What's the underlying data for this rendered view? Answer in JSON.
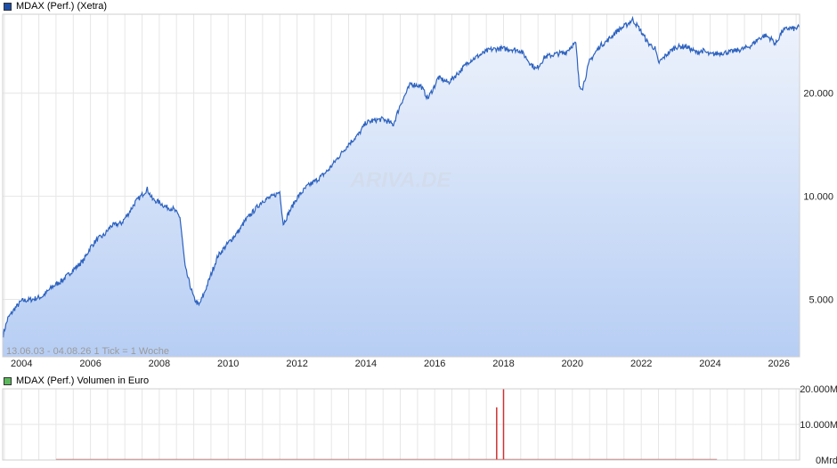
{
  "chart_data": [
    {
      "type": "area",
      "legend": "MDAX (Perf.) (Xetra)",
      "legend_color": "#1d4fa8",
      "line_color": "#2d62bf",
      "fill_top": "#eef3fc",
      "fill_bottom": "#b7cef4",
      "info": "13.06.03 - 04.08.26   1 Tick = 1 Woche",
      "watermark": "ARIVA.DE",
      "y_scale": "log",
      "ylim": [
        3400,
        34000
      ],
      "y_ticks": [
        5000,
        10000,
        20000
      ],
      "y_tick_labels": [
        "5.000",
        "10.000",
        "20.000"
      ],
      "x_range": [
        2003.45,
        2026.6
      ],
      "x_ticks": [
        2004,
        2006,
        2008,
        2010,
        2012,
        2014,
        2016,
        2018,
        2020,
        2022,
        2024,
        2026
      ],
      "x_tick_labels": [
        "2004",
        "2006",
        "2008",
        "2010",
        "2012",
        "2014",
        "2016",
        "2018",
        "2020",
        "2022",
        "2024",
        "2026"
      ],
      "grid": true,
      "x": [
        2003.45,
        2003.6,
        2003.8,
        2004.0,
        2004.3,
        2004.6,
        2004.9,
        2005.2,
        2005.5,
        2005.8,
        2006.0,
        2006.2,
        2006.4,
        2006.6,
        2006.9,
        2007.1,
        2007.3,
        2007.5,
        2007.65,
        2007.8,
        2008.0,
        2008.2,
        2008.4,
        2008.6,
        2008.75,
        2008.85,
        2009.0,
        2009.15,
        2009.3,
        2009.5,
        2009.7,
        2010.0,
        2010.3,
        2010.5,
        2010.8,
        2011.0,
        2011.3,
        2011.5,
        2011.6,
        2011.8,
        2012.0,
        2012.3,
        2012.6,
        2012.9,
        2013.2,
        2013.5,
        2013.8,
        2014.0,
        2014.3,
        2014.5,
        2014.8,
        2015.0,
        2015.3,
        2015.6,
        2015.8,
        2016.0,
        2016.1,
        2016.4,
        2016.7,
        2017.0,
        2017.3,
        2017.6,
        2017.9,
        2018.2,
        2018.5,
        2018.8,
        2018.95,
        2019.2,
        2019.5,
        2019.8,
        2020.0,
        2020.1,
        2020.2,
        2020.3,
        2020.5,
        2020.8,
        2021.0,
        2021.3,
        2021.6,
        2021.75,
        2021.95,
        2022.2,
        2022.4,
        2022.5,
        2022.75,
        2023.0,
        2023.3,
        2023.6,
        2023.8,
        2024.0,
        2024.3,
        2024.6,
        2024.8,
        2025.0,
        2025.2,
        2025.4,
        2025.6,
        2025.8,
        2025.9,
        2026.1,
        2026.3,
        2026.45,
        2026.6
      ],
      "y": [
        3900,
        4400,
        4700,
        4950,
        5000,
        5100,
        5450,
        5700,
        6100,
        6500,
        7100,
        7500,
        7700,
        8200,
        8350,
        8900,
        9600,
        10100,
        10500,
        9800,
        9600,
        9300,
        9200,
        8700,
        6200,
        5700,
        5050,
        4800,
        5200,
        5900,
        6700,
        7300,
        7900,
        8500,
        9200,
        9700,
        10000,
        10300,
        8300,
        9100,
        9900,
        10700,
        11200,
        11900,
        13000,
        14200,
        15200,
        16400,
        16700,
        16800,
        16200,
        18500,
        21300,
        21000,
        19300,
        21000,
        22200,
        21500,
        23000,
        24800,
        25800,
        26800,
        27000,
        26900,
        26600,
        24300,
        23500,
        25500,
        26000,
        26300,
        27600,
        27900,
        21000,
        20800,
        24800,
        27500,
        28400,
        30400,
        31800,
        32800,
        30800,
        28000,
        27000,
        24500,
        26000,
        27300,
        27400,
        26300,
        26600,
        25900,
        26200,
        26400,
        26700,
        27000,
        27600,
        28800,
        29500,
        28700,
        27800,
        30400,
        31000,
        30800,
        31200
      ]
    },
    {
      "type": "bar",
      "legend": "MDAX (Perf.) Volumen in Euro",
      "legend_color": "#5cb85c",
      "ylim": [
        0,
        20000
      ],
      "y_ticks": [
        0,
        10000,
        20000
      ],
      "y_tick_labels": [
        "0Mrd",
        "10.000M",
        "20.000M"
      ],
      "spikes": [
        {
          "x": 2017.8,
          "value": 14800,
          "color": "#cc3333"
        },
        {
          "x": 2018.0,
          "value": 20000,
          "color": "#cc3333"
        }
      ],
      "baseline_start": 2005.0,
      "baseline_end": 2024.2,
      "baseline_color": "#c97a7a"
    }
  ]
}
